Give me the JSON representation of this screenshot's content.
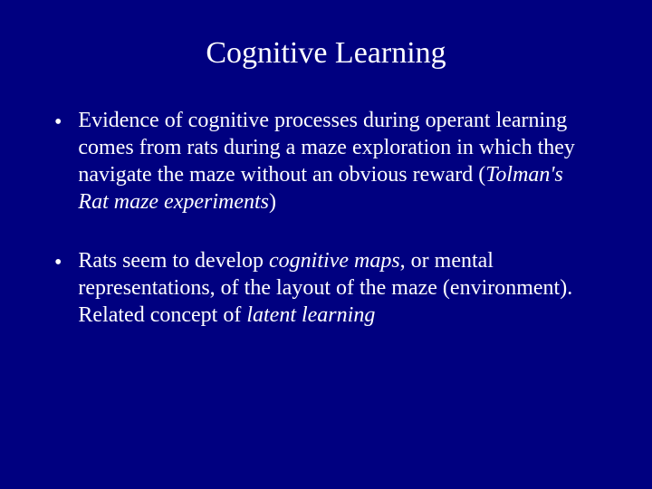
{
  "slide": {
    "title": "Cognitive Learning",
    "background_color": "#000080",
    "text_color": "#ffffff",
    "title_fontsize": 34,
    "body_fontsize": 24,
    "font_family": "Palatino",
    "bullets": [
      {
        "marker": "•",
        "segments": [
          {
            "text": "Evidence of cognitive processes during operant learning comes from rats during a maze exploration in which they navigate the maze without an obvious reward (",
            "italic": false
          },
          {
            "text": "Tolman's Rat maze experiments",
            "italic": true
          },
          {
            "text": ")",
            "italic": false
          }
        ]
      },
      {
        "marker": "•",
        "segments": [
          {
            "text": "Rats seem to develop ",
            "italic": false
          },
          {
            "text": "cognitive maps",
            "italic": true
          },
          {
            "text": ", or mental representations, of the layout of the maze (environment).  Related concept of ",
            "italic": false
          },
          {
            "text": "latent learning",
            "italic": true
          }
        ]
      }
    ]
  }
}
